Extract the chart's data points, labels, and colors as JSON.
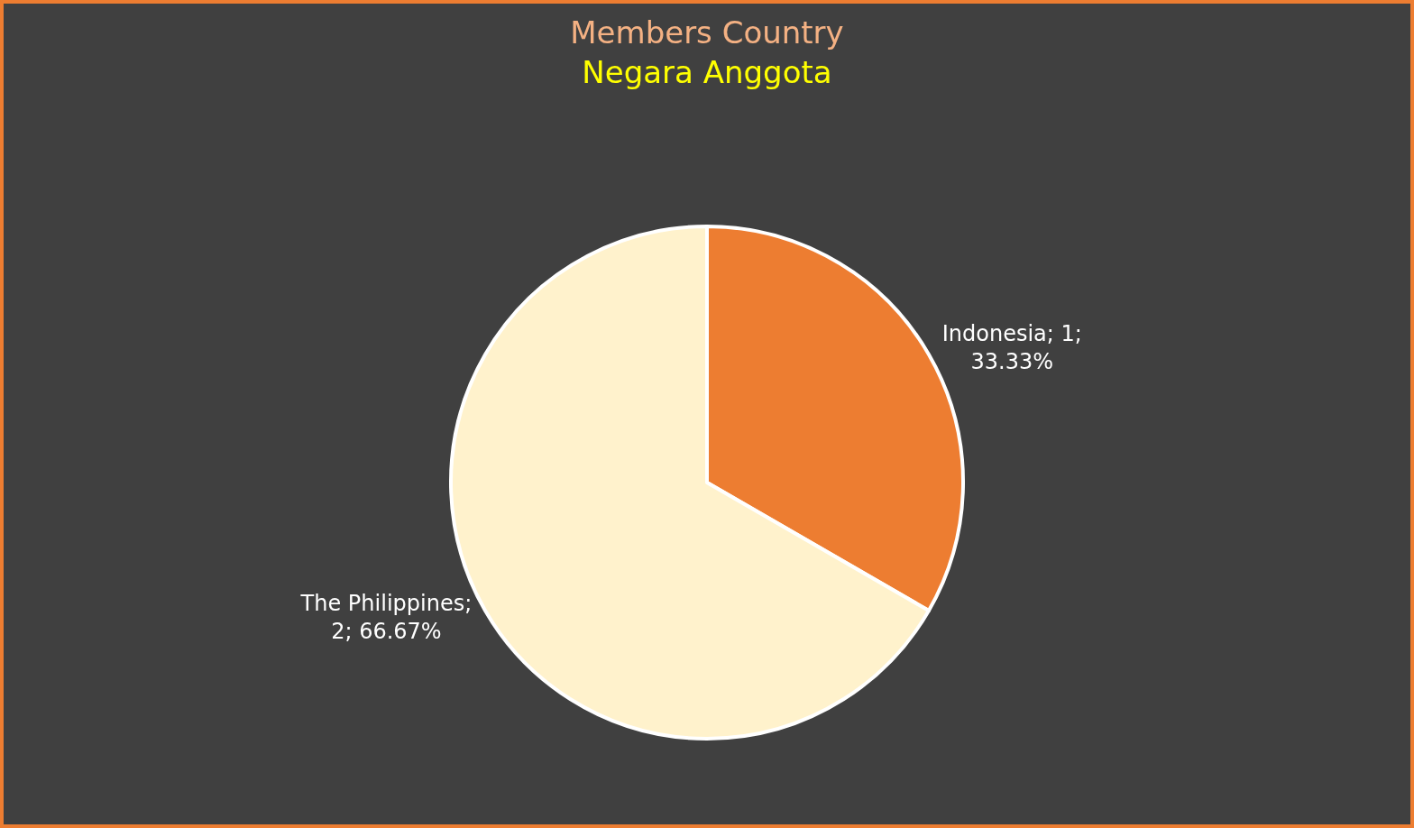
{
  "chart_data": {
    "type": "pie",
    "title": "Members Country",
    "subtitle": "Negara Anggota",
    "categories": [
      "Indonesia",
      "The Philippines"
    ],
    "values": [
      1,
      2
    ],
    "colors": [
      "#ed7d31",
      "#fff2cc"
    ],
    "value_labels": [
      "; 1; 33.33%",
      "; 2; 66.67%"
    ],
    "legend": false
  }
}
